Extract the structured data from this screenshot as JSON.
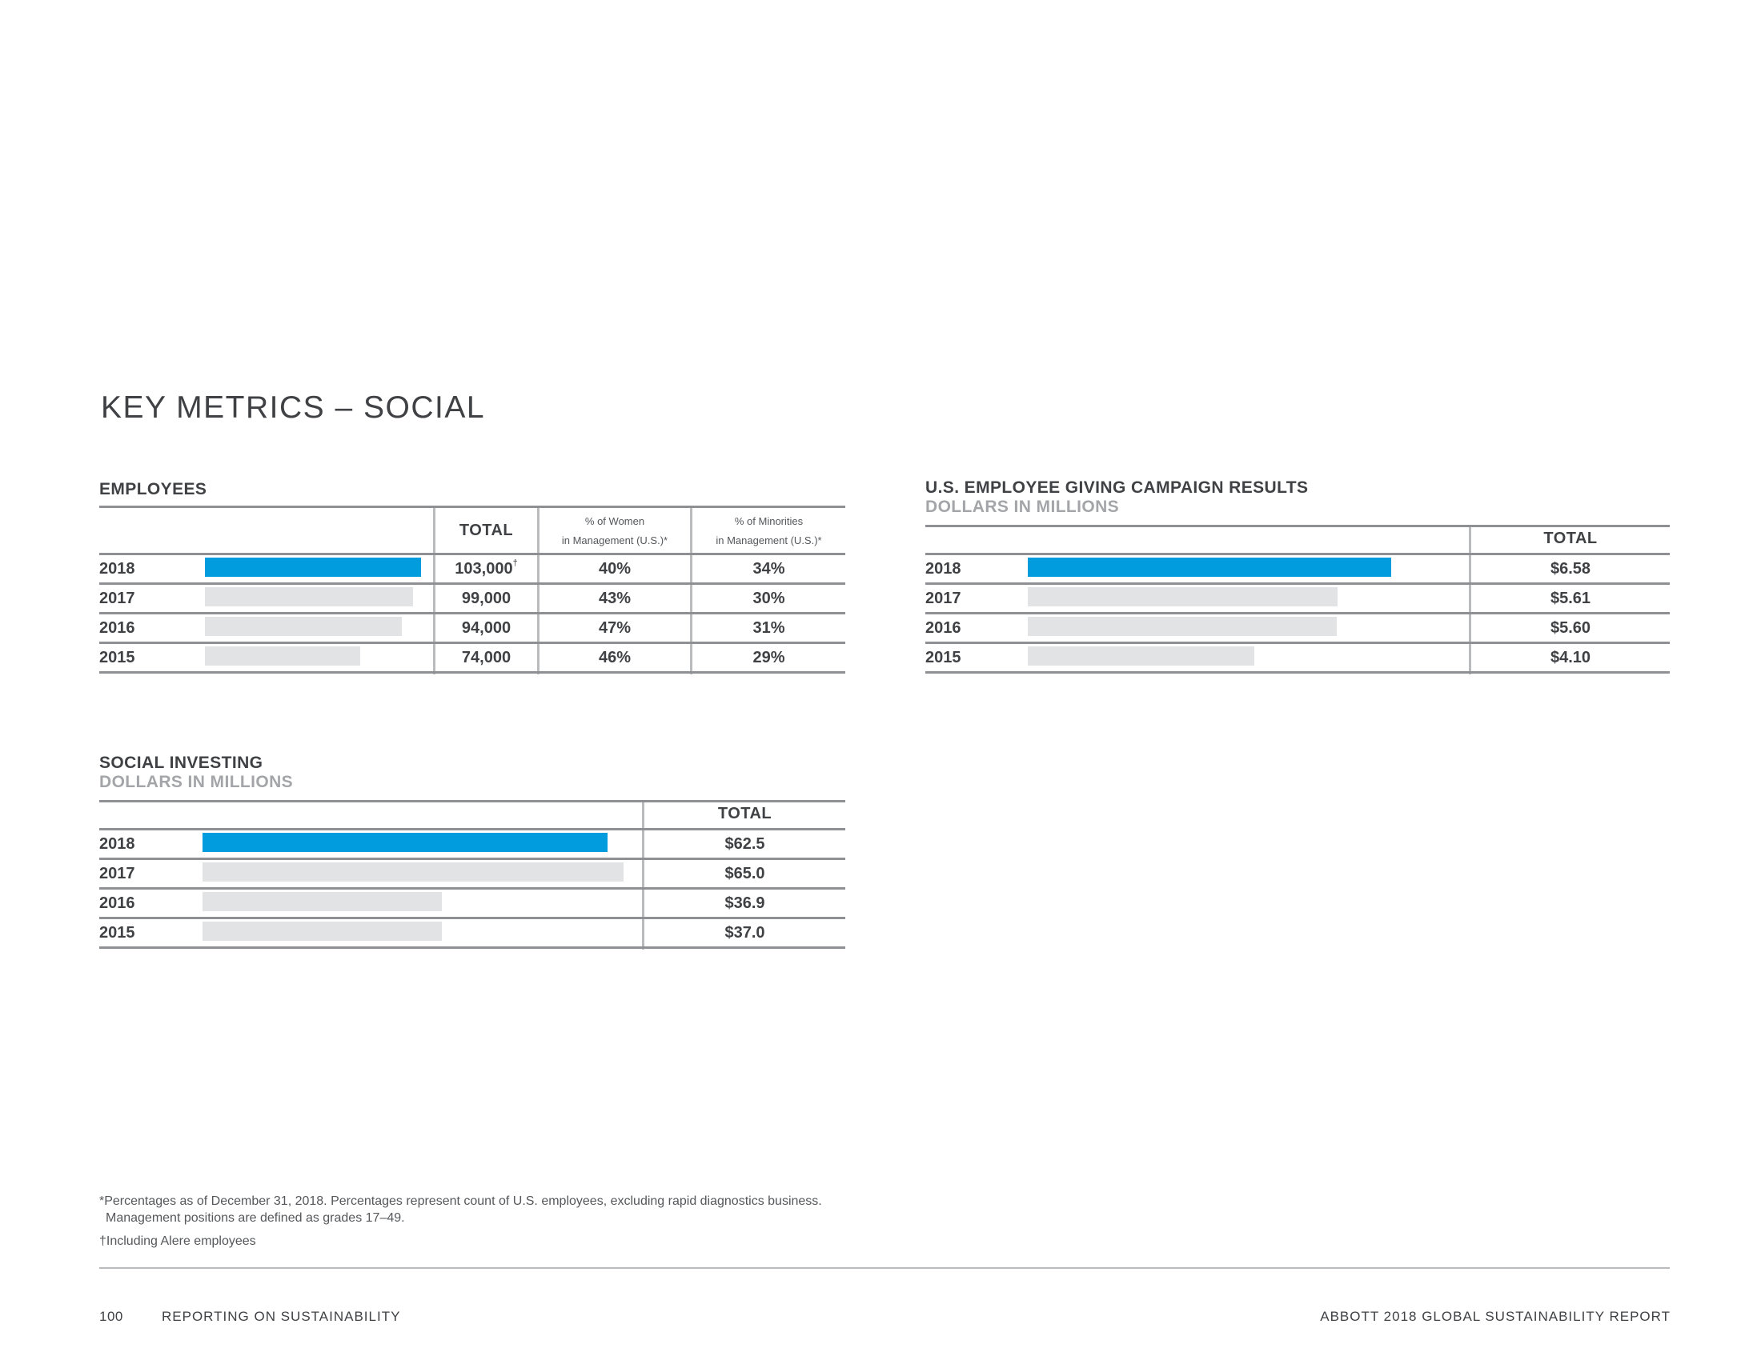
{
  "page": {
    "title": "KEY METRICS – SOCIAL"
  },
  "employees": {
    "title": "EMPLOYEES",
    "headers": {
      "total": "TOTAL",
      "women_line1": "% of Women",
      "women_line2": "in Management (U.S.)*",
      "minorities_line1": "% of Minorities",
      "minorities_line2": "in Management (U.S.)*"
    },
    "rows": [
      {
        "year": "2018",
        "value": 103000,
        "total": "103,000",
        "mark": "†",
        "women": "40%",
        "minorities": "34%"
      },
      {
        "year": "2017",
        "value": 99000,
        "total": "99,000",
        "mark": "",
        "women": "43%",
        "minorities": "30%"
      },
      {
        "year": "2016",
        "value": 94000,
        "total": "94,000",
        "mark": "",
        "women": "47%",
        "minorities": "31%"
      },
      {
        "year": "2015",
        "value": 74000,
        "total": "74,000",
        "mark": "",
        "women": "46%",
        "minorities": "29%"
      }
    ]
  },
  "giving": {
    "title": "U.S. EMPLOYEE GIVING CAMPAIGN RESULTS",
    "subtitle": "DOLLARS IN MILLIONS",
    "headers": {
      "total": "TOTAL"
    },
    "rows": [
      {
        "year": "2018",
        "value": 6.58,
        "total": "$6.58"
      },
      {
        "year": "2017",
        "value": 5.61,
        "total": "$5.61"
      },
      {
        "year": "2016",
        "value": 5.6,
        "total": "$5.60"
      },
      {
        "year": "2015",
        "value": 4.1,
        "total": "$4.10"
      }
    ]
  },
  "investing": {
    "title": "SOCIAL INVESTING",
    "subtitle": "DOLLARS IN MILLIONS",
    "headers": {
      "total": "TOTAL"
    },
    "rows": [
      {
        "year": "2018",
        "value": 62.5,
        "total": "$62.5"
      },
      {
        "year": "2017",
        "value": 65.0,
        "total": "$65.0"
      },
      {
        "year": "2016",
        "value": 36.9,
        "total": "$36.9"
      },
      {
        "year": "2015",
        "value": 37.0,
        "total": "$37.0"
      }
    ]
  },
  "footnotes": {
    "line1": "*Percentages as of December 31, 2018. Percentages represent count of U.S. employees, excluding rapid diagnostics business.",
    "line2": "Management positions are defined as grades 17–49.",
    "line3": "†Including Alere employees"
  },
  "footer": {
    "page_number": "100",
    "section": "REPORTING ON SUSTAINABILITY",
    "report": "ABBOTT 2018 GLOBAL SUSTAINABILITY REPORT"
  },
  "colors": {
    "current_bar": "#009cde",
    "prior_bar": "#e2e3e4",
    "rule": "#8e9093"
  }
}
